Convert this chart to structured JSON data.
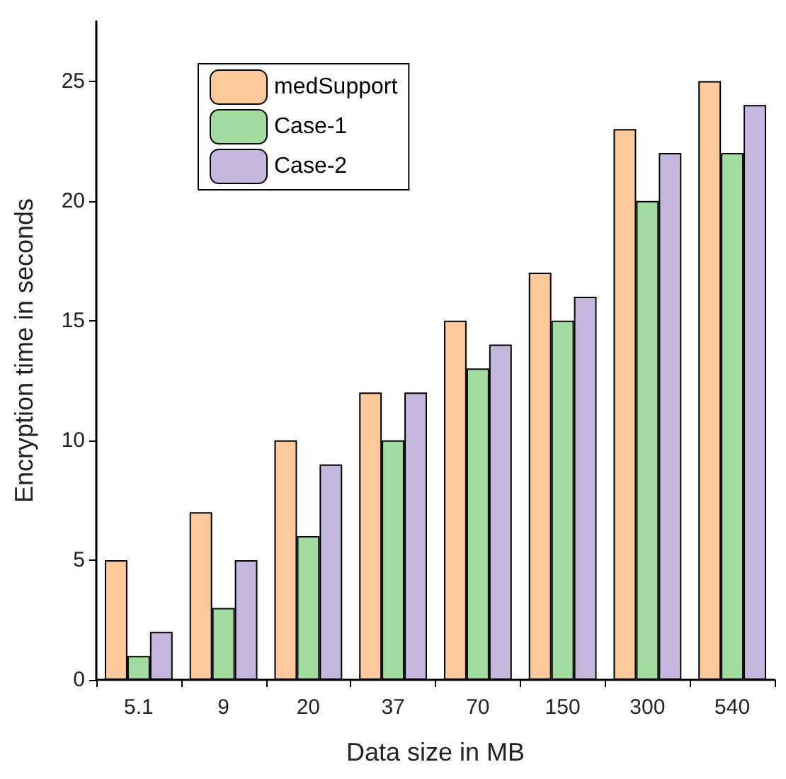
{
  "chart_data": {
    "type": "bar",
    "xlabel": "Data size in MB",
    "ylabel": "Encryption time in seconds",
    "categories": [
      "5.1",
      "9",
      "20",
      "37",
      "70",
      "150",
      "300",
      "540"
    ],
    "series": [
      {
        "name": "medSupport",
        "color": "#fcc99a",
        "values": [
          5,
          7,
          10,
          12,
          15,
          17,
          23,
          25
        ]
      },
      {
        "name": "Case-1",
        "color": "#a2dba0",
        "values": [
          1,
          3,
          6,
          10,
          13,
          15,
          20,
          22
        ]
      },
      {
        "name": "Case-2",
        "color": "#c5b6de",
        "values": [
          2,
          5,
          9,
          12,
          14,
          16,
          22,
          24
        ]
      }
    ],
    "ylim": [
      0,
      27.5
    ],
    "yticks": [
      0,
      5,
      10,
      15,
      20,
      25
    ],
    "grid": false,
    "legend": "top left"
  }
}
